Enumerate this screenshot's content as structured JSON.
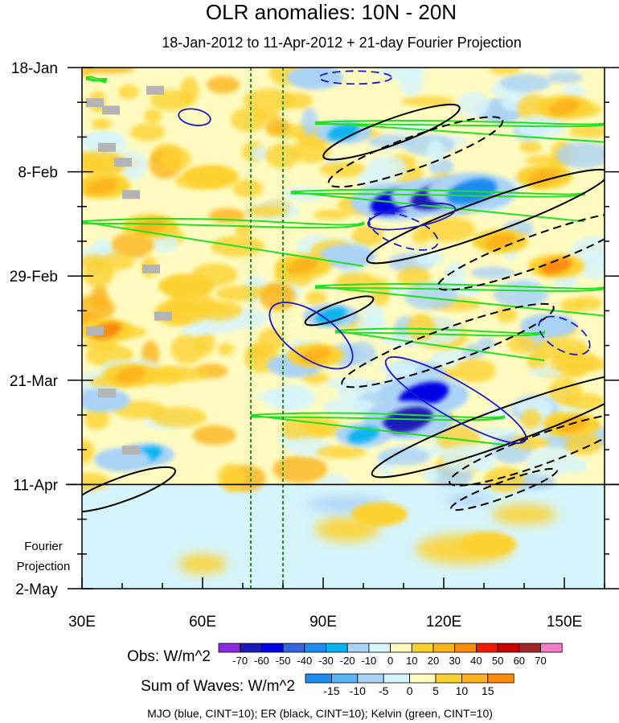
{
  "chart_data": {
    "type": "heatmap",
    "title": "OLR anomalies: 10N - 20N",
    "subtitle": "18-Jan-2012 to 11-Apr-2012 + 21-day Fourier Projection",
    "x_axis": {
      "label": "",
      "range": [
        30,
        160
      ],
      "units": "longitude (degrees east)",
      "ticks": [
        {
          "value": 30,
          "label": "30E"
        },
        {
          "value": 60,
          "label": "60E"
        },
        {
          "value": 90,
          "label": "90E"
        },
        {
          "value": 120,
          "label": "120E"
        },
        {
          "value": 150,
          "label": "150E"
        }
      ]
    },
    "y_axis": {
      "label": "",
      "range_days": [
        0,
        105
      ],
      "units": "days since 18-Jan-2012 (time increases downward)",
      "ticks": [
        {
          "day": 0,
          "label": "18-Jan"
        },
        {
          "day": 21,
          "label": "8-Feb"
        },
        {
          "day": 42,
          "label": "29-Feb"
        },
        {
          "day": 63,
          "label": "21-Mar"
        },
        {
          "day": 84,
          "label": "11-Apr"
        },
        {
          "day": 105,
          "label": "2-May"
        }
      ]
    },
    "projection_divider_day": 84,
    "projection_label": [
      "Fourier",
      "Projection"
    ],
    "reference_longitudes": [
      72,
      80
    ],
    "obs_colorbar": {
      "label": "Obs: W/m^2",
      "levels": [
        -70,
        -60,
        -50,
        -40,
        -30,
        -20,
        -10,
        0,
        10,
        20,
        30,
        40,
        50,
        60,
        70
      ],
      "colors": [
        "#8a2be2",
        "#1a1ab8",
        "#0000e6",
        "#3466e0",
        "#1e8cf0",
        "#08b4f0",
        "#aad2f5",
        "#d6f4fb",
        "#fffbc0",
        "#fcd232",
        "#fcb41e",
        "#fc8c0a",
        "#f01a00",
        "#c80000",
        "#a02828",
        "#f57ac8"
      ]
    },
    "waves_colorbar": {
      "label": "Sum of Waves: W/m^2",
      "levels": [
        -15,
        -10,
        -5,
        0,
        5,
        10,
        15
      ],
      "colors": [
        "#1e8cf0",
        "#5ab4f5",
        "#aad2f5",
        "#d6f4fb",
        "#fffbc0",
        "#fcd232",
        "#fcb41e",
        "#fc8c0a"
      ]
    },
    "contour_legend": "MJO (blue, CINT=10); ER (black, CINT=10); Kelvin (green, CINT=10)",
    "series": [
      {
        "name": "MJO",
        "color": "#1a1acc",
        "contour_interval": 10
      },
      {
        "name": "ER",
        "color": "#000000",
        "contour_interval": 10
      },
      {
        "name": "Kelvin",
        "color": "#22e022",
        "contour_interval": 10
      }
    ],
    "missing_data_color": "#b4b4b4",
    "anomaly_patches": [
      {
        "lon": 108,
        "day": 27,
        "value": -60
      },
      {
        "lon": 118,
        "day": 26,
        "value": -70
      },
      {
        "lon": 127,
        "day": 25,
        "value": -40
      },
      {
        "lon": 95,
        "day": 13,
        "value": -30
      },
      {
        "lon": 92,
        "day": 50,
        "value": -30
      },
      {
        "lon": 115,
        "day": 66,
        "value": -60
      },
      {
        "lon": 111,
        "day": 71,
        "value": -70
      },
      {
        "lon": 100,
        "day": 74,
        "value": -30
      },
      {
        "lon": 96,
        "day": 38,
        "value": -20
      },
      {
        "lon": 83,
        "day": 60,
        "value": -20
      },
      {
        "lon": 146,
        "day": 52,
        "value": -20
      },
      {
        "lon": 46,
        "day": 78,
        "value": -30
      },
      {
        "lon": 40,
        "day": 79,
        "value": -20
      },
      {
        "lon": 35,
        "day": 67,
        "value": -20
      },
      {
        "lon": 88,
        "day": 2,
        "value": -20
      },
      {
        "lon": 36,
        "day": 53,
        "value": 30
      },
      {
        "lon": 42,
        "day": 62,
        "value": 20
      },
      {
        "lon": 35,
        "day": 24,
        "value": 20
      },
      {
        "lon": 47,
        "day": 32,
        "value": 20
      },
      {
        "lon": 148,
        "day": 40,
        "value": 30
      },
      {
        "lon": 145,
        "day": 22,
        "value": 20
      },
      {
        "lon": 134,
        "day": 35,
        "value": 20
      },
      {
        "lon": 150,
        "day": 8,
        "value": 20
      },
      {
        "lon": 85,
        "day": 40,
        "value": 20
      },
      {
        "lon": 88,
        "day": 58,
        "value": 20
      },
      {
        "lon": 152,
        "day": 72,
        "value": 20
      },
      {
        "lon": 131,
        "day": 96,
        "value": 10
      },
      {
        "lon": 104,
        "day": 90,
        "value": 10
      },
      {
        "lon": 62,
        "day": 22,
        "value": 10
      },
      {
        "lon": 56,
        "day": 44,
        "value": 10
      }
    ],
    "contours": [
      {
        "wave": "ER",
        "style": "solid",
        "center": [
          107,
          13
        ],
        "radius_deg": 18,
        "radius_days": 2.6,
        "tilt_deg": -20
      },
      {
        "wave": "ER",
        "style": "dashed",
        "center": [
          113,
          17
        ],
        "radius_deg": 23,
        "radius_days": 3.2,
        "tilt_deg": -20
      },
      {
        "wave": "ER",
        "style": "solid",
        "center": [
          131,
          30
        ],
        "radius_deg": 32,
        "radius_days": 3.4,
        "tilt_deg": -20
      },
      {
        "wave": "ER",
        "style": "dashed",
        "center": [
          143,
          37
        ],
        "radius_deg": 26,
        "radius_days": 3.2,
        "tilt_deg": -20
      },
      {
        "wave": "ER",
        "style": "solid",
        "center": [
          94,
          49
        ],
        "radius_deg": 9,
        "radius_days": 1.6,
        "tilt_deg": -20
      },
      {
        "wave": "ER",
        "style": "dashed",
        "center": [
          121,
          56
        ],
        "radius_deg": 28,
        "radius_days": 3.4,
        "tilt_deg": -20
      },
      {
        "wave": "ER",
        "style": "solid",
        "center": [
          136,
          72
        ],
        "radius_deg": 36,
        "radius_days": 3.6,
        "tilt_deg": -20
      },
      {
        "wave": "ER",
        "style": "dashed",
        "center": [
          144,
          77
        ],
        "radius_deg": 24,
        "radius_days": 3.0,
        "tilt_deg": -20
      },
      {
        "wave": "ER",
        "style": "solid",
        "center": [
          40,
          85
        ],
        "radius_deg": 14,
        "radius_days": 2.4,
        "tilt_deg": -20
      },
      {
        "wave": "ER",
        "style": "dashed",
        "center": [
          135,
          85
        ],
        "radius_deg": 14,
        "radius_days": 1.6,
        "tilt_deg": -20
      },
      {
        "wave": "MJO",
        "style": "solid",
        "center": [
          58,
          10
        ],
        "radius_deg": 4,
        "radius_days": 1.6,
        "tilt_deg": 10
      },
      {
        "wave": "MJO",
        "style": "dashed",
        "center": [
          98,
          2
        ],
        "radius_deg": 9,
        "radius_days": 1.3,
        "tilt_deg": 0
      },
      {
        "wave": "MJO",
        "style": "solid",
        "center": [
          112,
          30
        ],
        "radius_deg": 11,
        "radius_days": 2.2,
        "tilt_deg": -10
      },
      {
        "wave": "MJO",
        "style": "dashed",
        "center": [
          110,
          33
        ],
        "radius_deg": 9,
        "radius_days": 3.0,
        "tilt_deg": 20
      },
      {
        "wave": "MJO",
        "style": "solid",
        "center": [
          87,
          54
        ],
        "radius_deg": 12,
        "radius_days": 4.5,
        "tilt_deg": 35
      },
      {
        "wave": "MJO",
        "style": "solid",
        "center": [
          123,
          67
        ],
        "radius_deg": 20,
        "radius_days": 3.6,
        "tilt_deg": 30
      },
      {
        "wave": "MJO",
        "style": "dashed",
        "center": [
          150,
          54
        ],
        "radius_deg": 7,
        "radius_days": 3.0,
        "tilt_deg": 30
      }
    ],
    "kelvin_bands": [
      {
        "day_start": 11,
        "day_end": 15,
        "lon_start": 88,
        "lon_end": 160
      },
      {
        "day_start": 25,
        "day_end": 31,
        "lon_start": 82,
        "lon_end": 155
      },
      {
        "day_start": 31,
        "day_end": 40,
        "lon_start": 30,
        "lon_end": 100
      },
      {
        "day_start": 44,
        "day_end": 50,
        "lon_start": 88,
        "lon_end": 160
      },
      {
        "day_start": 53,
        "day_end": 59,
        "lon_start": 93,
        "lon_end": 145
      },
      {
        "day_start": 70,
        "day_end": 76,
        "lon_start": 72,
        "lon_end": 135
      },
      {
        "day_start": 2,
        "day_end": 3,
        "lon_start": 31,
        "lon_end": 36
      }
    ]
  }
}
